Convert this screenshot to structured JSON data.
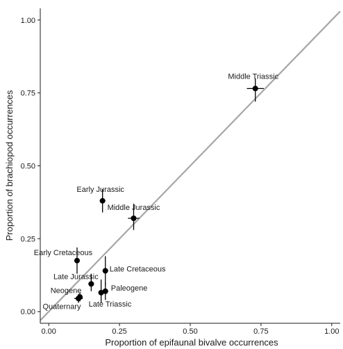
{
  "chart_data": {
    "type": "scatter",
    "xlabel": "Proportion of epifaunal bivalve occurrences",
    "ylabel": "Proportion of brachiopod occurrences",
    "xlim": [
      -0.03,
      1.03
    ],
    "ylim": [
      -0.04,
      1.04
    ],
    "x_ticks": [
      0.0,
      0.25,
      0.5,
      0.75,
      1.0
    ],
    "y_ticks": [
      0.0,
      0.25,
      0.5,
      0.75,
      1.0
    ],
    "x_tick_labels": [
      "0.00",
      "0.25",
      "0.50",
      "0.75",
      "1.00"
    ],
    "y_tick_labels": [
      "0.00",
      "0.25",
      "0.50",
      "0.75",
      "1.00"
    ],
    "grid": false,
    "reference_line": {
      "type": "identity",
      "color": "#a6a6a6"
    },
    "points": [
      {
        "label": "Middle Triassic",
        "x": 0.73,
        "y": 0.765,
        "xerr": [
          0.7,
          0.76
        ],
        "yerr": [
          0.72,
          0.8
        ]
      },
      {
        "label": "Early Jurassic",
        "x": 0.19,
        "y": 0.38,
        "xerr": [
          0.18,
          0.2
        ],
        "yerr": [
          0.34,
          0.42
        ]
      },
      {
        "label": "Middle Jurassic",
        "x": 0.3,
        "y": 0.32,
        "xerr": [
          0.28,
          0.32
        ],
        "yerr": [
          0.28,
          0.37
        ]
      },
      {
        "label": "Early Cretaceous",
        "x": 0.1,
        "y": 0.175,
        "xerr": [
          0.095,
          0.105
        ],
        "yerr": [
          0.13,
          0.22
        ]
      },
      {
        "label": "Late Cretaceous",
        "x": 0.2,
        "y": 0.14,
        "xerr": [
          0.19,
          0.21
        ],
        "yerr": [
          0.09,
          0.19
        ]
      },
      {
        "label": "Late Jurassic",
        "x": 0.15,
        "y": 0.095,
        "xerr": [
          0.14,
          0.16
        ],
        "yerr": [
          0.07,
          0.13
        ]
      },
      {
        "label": "Paleogene",
        "x": 0.2,
        "y": 0.07,
        "xerr": [
          0.19,
          0.21
        ],
        "yerr": [
          0.04,
          0.1
        ]
      },
      {
        "label": "Late Triassic",
        "x": 0.185,
        "y": 0.065,
        "xerr": [
          0.175,
          0.195
        ],
        "yerr": [
          0.03,
          0.11
        ]
      },
      {
        "label": "Neogene",
        "x": 0.11,
        "y": 0.05,
        "xerr": [
          0.1,
          0.12
        ],
        "yerr": [
          0.035,
          0.065
        ]
      },
      {
        "label": "Quaternary",
        "x": 0.105,
        "y": 0.045,
        "xerr": [
          0.09,
          0.12
        ],
        "yerr": [
          0.03,
          0.06
        ]
      }
    ],
    "colors": {
      "points": "#000000",
      "axis": "#1a1a1a",
      "tick_text": "#4d4d4d"
    }
  }
}
